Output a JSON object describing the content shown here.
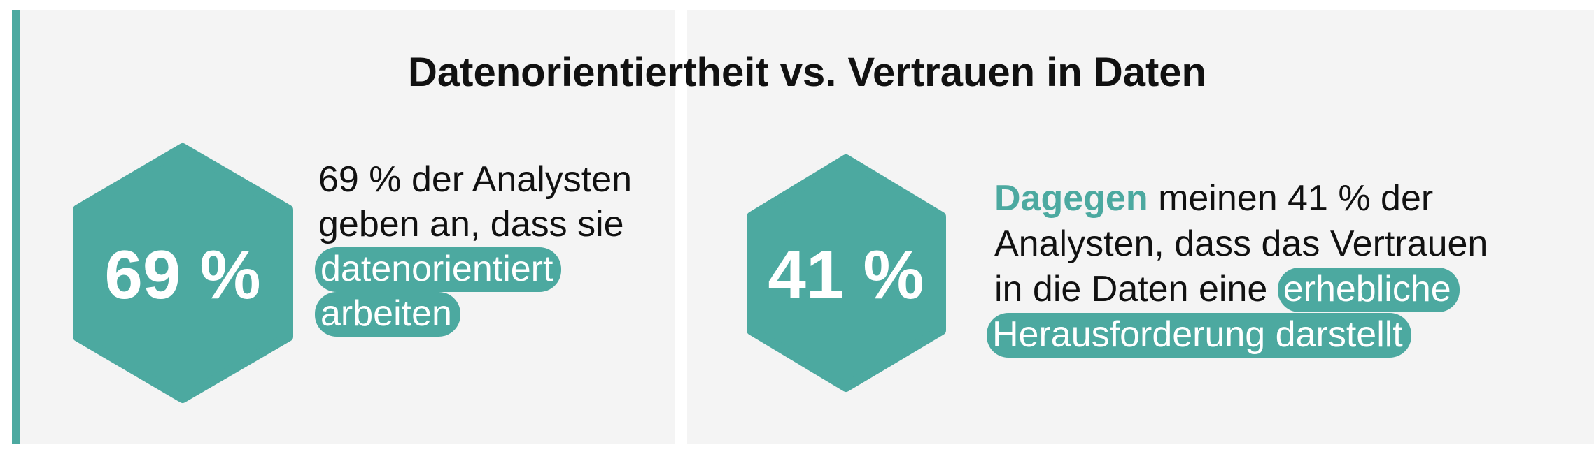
{
  "title": "Datenorientiertheit vs. Vertrauen in Daten",
  "panels": [
    {
      "stat": "69 %",
      "text": [
        "69 % der Analysten",
        "geben an, dass sie"
      ],
      "highlighted": [
        "datenorientiert",
        "arbeiten"
      ]
    },
    {
      "stat": "41 %",
      "lead": "Dagegen",
      "text": [
        "meinen 41 % der",
        "Analysten, dass das Vertrauen",
        "in die Daten eine"
      ],
      "highlighted": [
        "erhebliche",
        "Herausforderung darstellt"
      ]
    }
  ]
}
